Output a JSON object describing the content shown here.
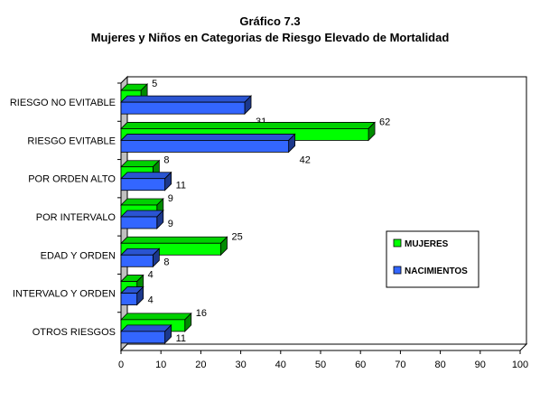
{
  "chart_data": {
    "type": "bar",
    "orientation": "horizontal",
    "title": "Gráfico 7.3",
    "subtitle": "Mujeres y Niños en Categorias de Riesgo Elevado de Mortalidad",
    "categories": [
      "RIESGO NO EVITABLE",
      "RIESGO EVITABLE",
      "POR ORDEN ALTO",
      "POR INTERVALO",
      "EDAD Y ORDEN",
      "INTERVALO Y ORDEN",
      "OTROS RIESGOS"
    ],
    "series": [
      {
        "name": "MUJERES",
        "values": [
          5,
          62,
          8,
          9,
          25,
          4,
          16
        ],
        "color": "#00ff00"
      },
      {
        "name": "NACIMIENTOS",
        "values": [
          31,
          42,
          11,
          9,
          8,
          4,
          11
        ],
        "color": "#3366ff"
      }
    ],
    "xlim": [
      0,
      100
    ],
    "xticks": [
      0,
      10,
      20,
      30,
      40,
      50,
      60,
      70,
      80,
      90,
      100
    ],
    "grid": false,
    "legend_position": "right",
    "style": "3d",
    "background": "#ffffff"
  }
}
